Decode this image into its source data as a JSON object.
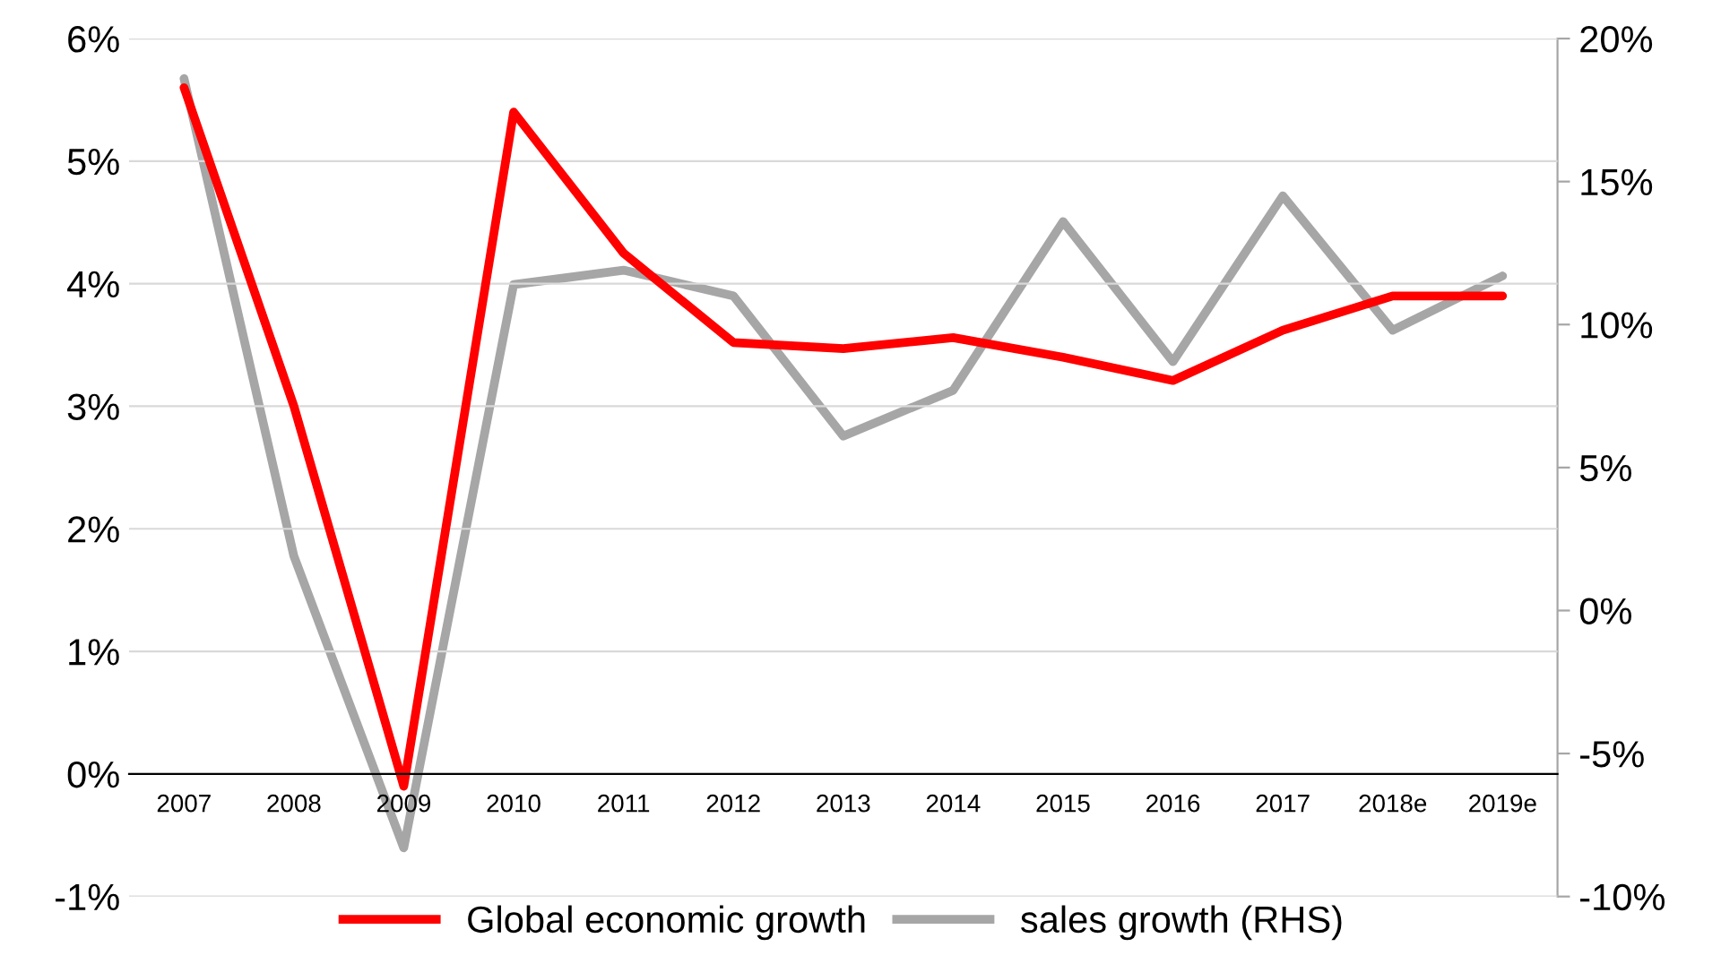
{
  "chart_data": {
    "type": "line",
    "categories": [
      "2007",
      "2008",
      "2009",
      "2010",
      "2011",
      "2012",
      "2013",
      "2014",
      "2015",
      "2016",
      "2017",
      "2018e",
      "2019e"
    ],
    "series": [
      {
        "name": "Global economic growth",
        "color": "#ff0000",
        "values": [
          5.6,
          3.0,
          -0.1,
          5.4,
          4.25,
          3.52,
          3.47,
          3.56,
          3.4,
          3.21,
          3.62,
          3.9,
          3.9
        ]
      },
      {
        "name": "sales growth (RHS)",
        "color": "#a6a6a6",
        "axis": "y2",
        "values": [
          18.6,
          1.9,
          -8.3,
          11.4,
          11.9,
          11.0,
          6.1,
          7.7,
          13.6,
          8.7,
          14.5,
          9.8,
          11.7
        ]
      }
    ],
    "ylim": [
      -1,
      6
    ],
    "yticks": [
      {
        "value": -1,
        "label": "-1%"
      },
      {
        "value": 0,
        "label": "0%"
      },
      {
        "value": 1,
        "label": "1%"
      },
      {
        "value": 2,
        "label": "2%"
      },
      {
        "value": 3,
        "label": "3%"
      },
      {
        "value": 4,
        "label": "4%"
      },
      {
        "value": 5,
        "label": "5%"
      },
      {
        "value": 6,
        "label": "6%"
      }
    ],
    "y2lim": [
      -10,
      20
    ],
    "y2ticks": [
      {
        "value": -10,
        "label": "-10%"
      },
      {
        "value": -5,
        "label": "-5%"
      },
      {
        "value": 0,
        "label": "0%"
      },
      {
        "value": 5,
        "label": "5%"
      },
      {
        "value": 10,
        "label": "10%"
      },
      {
        "value": 15,
        "label": "15%"
      },
      {
        "value": 20,
        "label": "20%"
      }
    ],
    "grid": "y",
    "legend": "bottom",
    "marker": "none",
    "line_style": "solid"
  }
}
